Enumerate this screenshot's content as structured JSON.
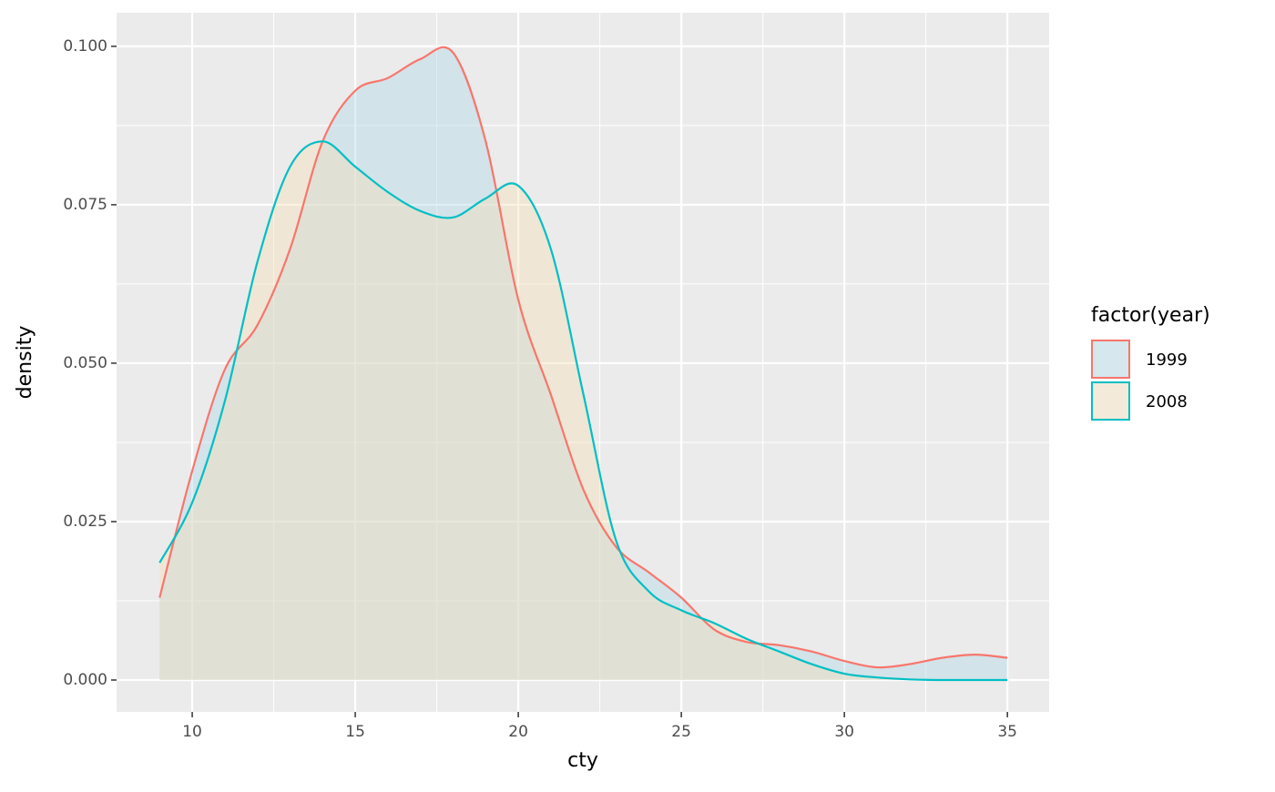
{
  "chart_data": {
    "type": "density",
    "x_label": "cty",
    "y_label": "density",
    "legend_title": "factor(year)",
    "legend_position": "right",
    "x": [
      9,
      10,
      11,
      12,
      13,
      14,
      15,
      16,
      17,
      18,
      19,
      20,
      21,
      22,
      23,
      24,
      25,
      26,
      27,
      28,
      29,
      30,
      31,
      32,
      33,
      34,
      35
    ],
    "series": [
      {
        "name": "1999",
        "color": "#f8766d",
        "fill": "#add8e6",
        "values": [
          0.013,
          0.033,
          0.049,
          0.056,
          0.068,
          0.085,
          0.093,
          0.095,
          0.098,
          0.099,
          0.085,
          0.06,
          0.045,
          0.03,
          0.021,
          0.017,
          0.013,
          0.008,
          0.006,
          0.0055,
          0.0045,
          0.003,
          0.002,
          0.0025,
          0.0035,
          0.004,
          0.0035
        ]
      },
      {
        "name": "2008",
        "color": "#00bfc4",
        "fill": "#f5deb3",
        "values": [
          0.0185,
          0.028,
          0.044,
          0.066,
          0.081,
          0.085,
          0.081,
          0.077,
          0.074,
          0.073,
          0.076,
          0.078,
          0.068,
          0.045,
          0.022,
          0.014,
          0.011,
          0.009,
          0.0065,
          0.0045,
          0.0025,
          0.001,
          0.0004,
          0.0001,
          0,
          0,
          0
        ]
      }
    ],
    "xlim": [
      7.68,
      36.28
    ],
    "ylim": [
      -0.00503,
      0.1053
    ],
    "xticks": [
      10,
      15,
      20,
      25,
      30,
      35
    ],
    "yticks": [
      {
        "value": 0,
        "label": "0.000"
      },
      0.025,
      {
        "value": 0.05,
        "label": "0.050"
      },
      0.075,
      {
        "value": 0.1,
        "label": "0.100"
      }
    ],
    "grid": true
  }
}
